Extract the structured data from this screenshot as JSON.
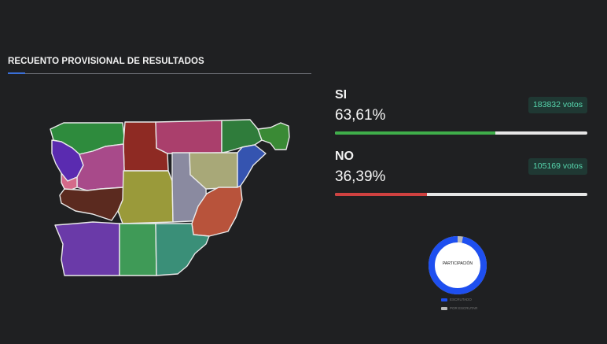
{
  "header": {
    "title": "RECUENTO PROVISIONAL DE RESULTADOS"
  },
  "results": [
    {
      "label": "SI",
      "percent": "63,61%",
      "percent_value": 63.61,
      "votes": "183832 votos",
      "color": "#3fae4a"
    },
    {
      "label": "NO",
      "percent": "36,39%",
      "percent_value": 36.39,
      "votes": "105169 votos",
      "color": "#cf4140"
    }
  ],
  "map": {
    "region_colors": [
      "#2e8b3d",
      "#8e2a23",
      "#aa3f6c",
      "#2f7c3b",
      "#3a8a35",
      "#5a2bb0",
      "#a84a8a",
      "#d46a8a",
      "#5b2a1f",
      "#9a9a3a",
      "#8a8aa0",
      "#a8a878",
      "#3554b0",
      "#b8533b",
      "#6a3aa8",
      "#3f9a57",
      "#3a8f78"
    ]
  },
  "participation": {
    "center_label": "PARTICIPACIÓN",
    "counted_fraction": 0.97,
    "counted_color": "#1e4ff0",
    "remaining_color": "#b9b9b9",
    "legend": [
      {
        "label": "ESCRUTADO",
        "color": "#1e4ff0"
      },
      {
        "label": "POR ESCRUTAR",
        "color": "#b9b9b9"
      }
    ]
  }
}
